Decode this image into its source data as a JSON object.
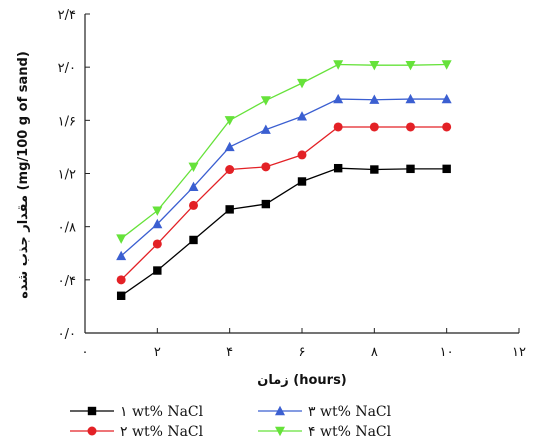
{
  "chart_data": {
    "type": "line",
    "title": "",
    "xlabel": "زمان (hours)",
    "ylabel": "مقدار جذب شده (mg/100 g of sand)",
    "xlim": [
      0,
      12
    ],
    "ylim": [
      0,
      2.4
    ],
    "grid": false,
    "legend_position": "bottom",
    "x_ticks": [
      0,
      2,
      4,
      6,
      8,
      10,
      12
    ],
    "y_ticks": [
      0,
      0.4,
      0.8,
      1.2,
      1.6,
      2.0,
      2.4
    ],
    "x_tick_labels": [
      "۰",
      "۲",
      "۴",
      "۶",
      "۸",
      "۱۰",
      "۱۲"
    ],
    "y_tick_labels": [
      "۰/۰",
      "۰/۴",
      "۰/۸",
      "۱/۲",
      "۱/۶",
      "۲/۰",
      "۲/۴"
    ],
    "x": [
      1,
      2,
      3,
      4,
      5,
      6,
      7,
      8,
      9,
      10
    ],
    "series": [
      {
        "name": "۱ wt% NaCl",
        "color": "#000000",
        "marker": "square",
        "values": [
          0.28,
          0.47,
          0.7,
          0.93,
          0.97,
          1.14,
          1.24,
          1.23,
          1.235,
          1.235
        ]
      },
      {
        "name": "۲ wt% NaCl",
        "color": "#e32126",
        "marker": "circle",
        "values": [
          0.4,
          0.67,
          0.96,
          1.23,
          1.25,
          1.34,
          1.55,
          1.55,
          1.55,
          1.55
        ]
      },
      {
        "name": "۳ wt% NaCl",
        "color": "#3b5fd1",
        "marker": "triangle-up",
        "values": [
          0.58,
          0.82,
          1.1,
          1.4,
          1.53,
          1.63,
          1.76,
          1.755,
          1.76,
          1.76
        ]
      },
      {
        "name": "۴ wt% NaCl",
        "color": "#66e23a",
        "marker": "triangle-down",
        "values": [
          0.71,
          0.92,
          1.25,
          1.6,
          1.75,
          1.88,
          2.02,
          2.015,
          2.015,
          2.02
        ]
      }
    ]
  }
}
